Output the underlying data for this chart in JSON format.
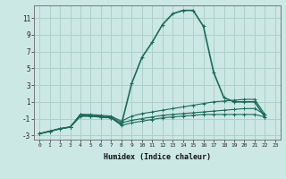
{
  "xlabel": "Humidex (Indice chaleur)",
  "bg_color": "#cce8e4",
  "grid_color": "#aecfca",
  "line_color": "#1a6b5a",
  "xlim": [
    -0.5,
    23.5
  ],
  "ylim": [
    -3.5,
    12.5
  ],
  "xticks": [
    0,
    1,
    2,
    3,
    4,
    5,
    6,
    7,
    8,
    9,
    10,
    11,
    12,
    13,
    14,
    15,
    16,
    17,
    18,
    19,
    20,
    21,
    22,
    23
  ],
  "yticks": [
    -3,
    -1,
    1,
    3,
    5,
    7,
    9,
    11
  ],
  "series1_x": [
    0,
    1,
    2,
    3,
    4,
    5,
    6,
    7,
    8,
    9,
    10,
    11,
    12,
    13,
    14,
    15,
    16,
    17,
    18,
    19,
    20,
    21,
    22
  ],
  "series1_y": [
    -2.8,
    -2.5,
    -2.2,
    -2.0,
    -0.7,
    -0.7,
    -0.8,
    -0.9,
    -1.7,
    3.2,
    6.3,
    8.1,
    10.2,
    11.5,
    11.9,
    11.9,
    10.0,
    4.5,
    1.5,
    1.0,
    1.0,
    1.0,
    -0.8
  ],
  "series2_x": [
    0,
    1,
    2,
    3,
    4,
    5,
    6,
    7,
    8,
    9,
    10,
    11,
    12,
    13,
    14,
    15,
    16,
    17,
    18,
    19,
    20,
    21,
    22
  ],
  "series2_y": [
    -2.8,
    -2.5,
    -2.2,
    -2.0,
    -0.5,
    -0.5,
    -0.6,
    -0.7,
    -1.3,
    -0.7,
    -0.4,
    -0.2,
    0.0,
    0.2,
    0.4,
    0.6,
    0.8,
    1.0,
    1.1,
    1.2,
    1.3,
    1.3,
    -0.5
  ],
  "series3_x": [
    0,
    1,
    2,
    3,
    4,
    5,
    6,
    7,
    8,
    9,
    10,
    11,
    12,
    13,
    14,
    15,
    16,
    17,
    18,
    19,
    20,
    21,
    22
  ],
  "series3_y": [
    -2.8,
    -2.5,
    -2.2,
    -2.0,
    -0.5,
    -0.6,
    -0.7,
    -0.8,
    -1.5,
    -1.2,
    -1.0,
    -0.8,
    -0.6,
    -0.5,
    -0.4,
    -0.3,
    -0.2,
    -0.1,
    0.0,
    0.1,
    0.2,
    0.2,
    -0.5
  ],
  "series4_x": [
    0,
    1,
    2,
    3,
    4,
    5,
    6,
    7,
    8,
    9,
    10,
    11,
    12,
    13,
    14,
    15,
    16,
    17,
    18,
    19,
    20,
    21,
    22
  ],
  "series4_y": [
    -2.8,
    -2.5,
    -2.2,
    -2.0,
    -0.5,
    -0.7,
    -0.8,
    -0.9,
    -1.8,
    -1.5,
    -1.3,
    -1.1,
    -0.9,
    -0.8,
    -0.7,
    -0.6,
    -0.5,
    -0.5,
    -0.5,
    -0.5,
    -0.5,
    -0.5,
    -0.8
  ]
}
